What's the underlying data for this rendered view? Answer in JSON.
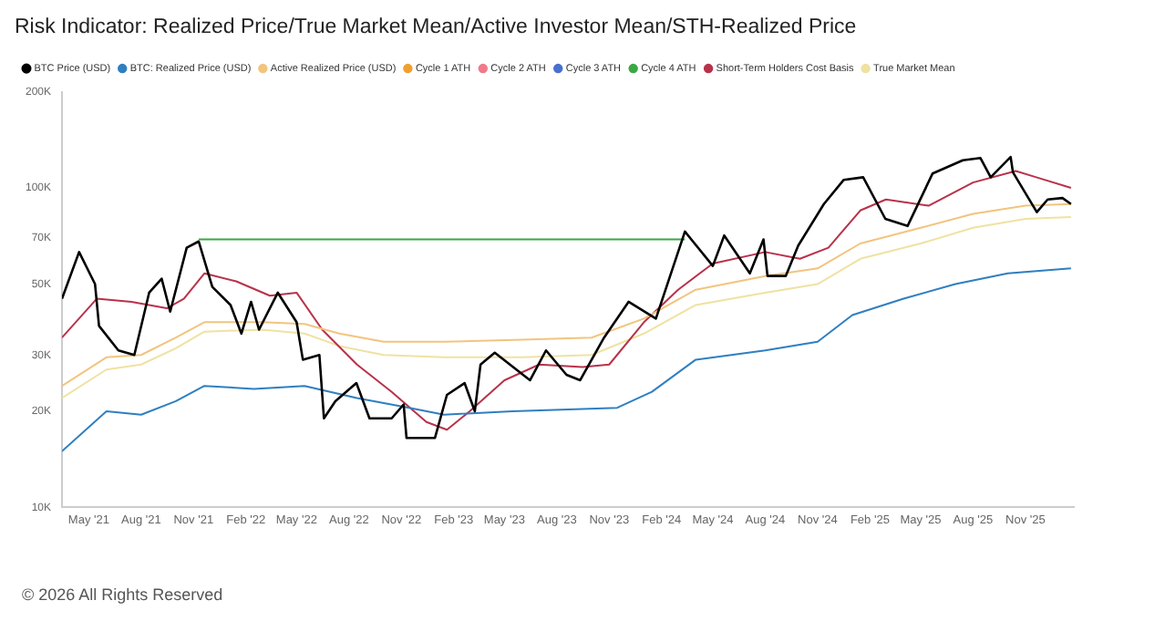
{
  "chart_data": {
    "type": "line",
    "title": "Risk Indicator: Realized Price/True Market Mean/Active Investor Mean/STH-Realized Price",
    "annotations": [
      "© 2026 All Rights Reserved"
    ],
    "log": "y",
    "grid": false,
    "legend": "top left",
    "marker": "none",
    "line_style": "solid",
    "xlim": [
      "2021-03-15",
      "2026-01-25"
    ],
    "xticks": [
      {
        "value": "2021-05-01",
        "label": "May '21"
      },
      {
        "value": "2021-08-01",
        "label": "Aug '21"
      },
      {
        "value": "2021-11-01",
        "label": "Nov '21"
      },
      {
        "value": "2022-02-01",
        "label": "Feb '22"
      },
      {
        "value": "2022-05-01",
        "label": "May '22"
      },
      {
        "value": "2022-08-01",
        "label": "Aug '22"
      },
      {
        "value": "2022-11-01",
        "label": "Nov '22"
      },
      {
        "value": "2023-02-01",
        "label": "Feb '23"
      },
      {
        "value": "2023-05-01",
        "label": "May '23"
      },
      {
        "value": "2023-08-01",
        "label": "Aug '23"
      },
      {
        "value": "2023-11-01",
        "label": "Nov '23"
      },
      {
        "value": "2024-02-01",
        "label": "Feb '24"
      },
      {
        "value": "2024-05-01",
        "label": "May '24"
      },
      {
        "value": "2024-08-01",
        "label": "Aug '24"
      },
      {
        "value": "2024-11-01",
        "label": "Nov '24"
      },
      {
        "value": "2025-02-01",
        "label": "Feb '25"
      },
      {
        "value": "2025-05-01",
        "label": "May '25"
      },
      {
        "value": "2025-08-01",
        "label": "Aug '25"
      },
      {
        "value": "2025-11-01",
        "label": "Nov '25"
      }
    ],
    "ylim": [
      10000,
      200000
    ],
    "yticks": [
      {
        "value": 10000,
        "label": "10K"
      },
      {
        "value": 20000,
        "label": "20K"
      },
      {
        "value": 30000,
        "label": "30K"
      },
      {
        "value": 50000,
        "label": "50K"
      },
      {
        "value": 70000,
        "label": "70K"
      },
      {
        "value": 100000,
        "label": "100K"
      },
      {
        "value": 200000,
        "label": "200K"
      }
    ],
    "series": [
      {
        "name": "BTC Price (USD)",
        "type": "line",
        "color": "#000000",
        "x": [
          "2021-03-15",
          "2021-04-14",
          "2021-05-12",
          "2021-05-19",
          "2021-06-22",
          "2021-07-20",
          "2021-08-15",
          "2021-09-06",
          "2021-09-21",
          "2021-10-20",
          "2021-11-10",
          "2021-12-04",
          "2022-01-05",
          "2022-01-24",
          "2022-02-10",
          "2022-02-24",
          "2022-03-29",
          "2022-05-01",
          "2022-05-12",
          "2022-06-10",
          "2022-06-18",
          "2022-07-08",
          "2022-08-14",
          "2022-09-06",
          "2022-10-15",
          "2022-11-05",
          "2022-11-10",
          "2022-12-30",
          "2023-01-20",
          "2023-02-20",
          "2023-03-10",
          "2023-03-20",
          "2023-04-14",
          "2023-06-15",
          "2023-07-13",
          "2023-08-18",
          "2023-09-11",
          "2023-10-23",
          "2023-12-05",
          "2024-01-22",
          "2024-03-13",
          "2024-05-01",
          "2024-05-21",
          "2024-07-05",
          "2024-07-29",
          "2024-08-05",
          "2024-09-06",
          "2024-09-28",
          "2024-11-12",
          "2024-12-17",
          "2025-01-20",
          "2025-02-28",
          "2025-04-08",
          "2025-05-22",
          "2025-07-14",
          "2025-08-14",
          "2025-09-01",
          "2025-10-06",
          "2025-10-10",
          "2025-11-21",
          "2025-12-10",
          "2026-01-05",
          "2026-01-20"
        ],
        "values": [
          45000,
          63000,
          50000,
          37000,
          31000,
          30000,
          47000,
          52000,
          41000,
          65000,
          68000,
          49000,
          43000,
          35000,
          44000,
          36000,
          47000,
          38000,
          29000,
          30000,
          19000,
          21500,
          24500,
          19000,
          19000,
          21000,
          16500,
          16500,
          22500,
          24500,
          20000,
          28000,
          30500,
          25000,
          31000,
          26000,
          25000,
          34000,
          44000,
          39000,
          73000,
          57000,
          71000,
          54000,
          69000,
          53000,
          53000,
          66000,
          89000,
          106000,
          108000,
          80000,
          76000,
          111000,
          122000,
          124000,
          108000,
          125000,
          112000,
          84000,
          92000,
          93000,
          89000
        ]
      },
      {
        "name": "BTC: Realized Price (USD)",
        "type": "line",
        "color": "#2f7fc1",
        "x": [
          "2021-03-15",
          "2021-06-01",
          "2021-08-01",
          "2021-10-01",
          "2021-11-20",
          "2022-02-15",
          "2022-05-15",
          "2022-08-15",
          "2022-11-15",
          "2023-01-15",
          "2023-05-15",
          "2023-11-15",
          "2024-01-15",
          "2024-04-01",
          "2024-08-01",
          "2024-11-01",
          "2025-01-01",
          "2025-04-01",
          "2025-07-01",
          "2025-10-01",
          "2026-01-20"
        ],
        "values": [
          15000,
          20000,
          19500,
          21500,
          24000,
          23500,
          24000,
          22000,
          20500,
          19500,
          20000,
          20500,
          23000,
          29000,
          31000,
          33000,
          40000,
          45000,
          50000,
          54000,
          56000
        ]
      },
      {
        "name": "Active Realized Price (USD)",
        "type": "line",
        "color": "#f2c47e",
        "x": [
          "2021-03-15",
          "2021-06-01",
          "2021-08-01",
          "2021-10-01",
          "2021-11-20",
          "2022-03-01",
          "2022-05-15",
          "2022-07-15",
          "2022-10-01",
          "2023-01-15",
          "2023-06-01",
          "2023-10-01",
          "2024-01-01",
          "2024-04-01",
          "2024-08-01",
          "2024-11-01",
          "2025-01-15",
          "2025-05-01",
          "2025-08-01",
          "2025-11-01",
          "2026-01-20"
        ],
        "values": [
          24000,
          29500,
          30000,
          34000,
          38000,
          38000,
          37500,
          35000,
          33000,
          33000,
          33500,
          34000,
          39000,
          48000,
          53000,
          56000,
          67000,
          75000,
          83000,
          88000,
          89000
        ]
      },
      {
        "name": "Cycle 1 ATH",
        "color": "#f0a030"
      },
      {
        "name": "Cycle 2 ATH",
        "color": "#f07a8a"
      },
      {
        "name": "Cycle 3 ATH",
        "color": "#4a6fd0"
      },
      {
        "name": "Cycle 4 ATH",
        "type": "line",
        "color": "#3aa845",
        "x": [
          "2021-11-10",
          "2024-03-13"
        ],
        "values": [
          69000,
          69000
        ]
      },
      {
        "name": "Short-Term Holders Cost Basis",
        "type": "line",
        "color": "#b8324a",
        "x": [
          "2021-03-15",
          "2021-05-15",
          "2021-07-15",
          "2021-09-15",
          "2021-10-15",
          "2021-11-20",
          "2022-01-15",
          "2022-03-15",
          "2022-05-01",
          "2022-06-15",
          "2022-08-15",
          "2022-10-15",
          "2022-12-15",
          "2023-01-20",
          "2023-03-01",
          "2023-05-01",
          "2023-07-01",
          "2023-09-15",
          "2023-11-01",
          "2024-01-01",
          "2024-03-01",
          "2024-05-01",
          "2024-08-01",
          "2024-10-01",
          "2024-11-20",
          "2025-01-15",
          "2025-03-01",
          "2025-05-15",
          "2025-08-01",
          "2025-10-15",
          "2025-11-20",
          "2026-01-20"
        ],
        "values": [
          34000,
          45000,
          44000,
          42000,
          45000,
          54000,
          51000,
          46000,
          47000,
          36000,
          28000,
          23000,
          18500,
          17500,
          20000,
          25000,
          28000,
          27500,
          28000,
          38000,
          48000,
          58000,
          63000,
          60000,
          65000,
          85000,
          92000,
          88000,
          104000,
          113000,
          108000,
          100000
        ]
      },
      {
        "name": "True Market Mean",
        "type": "line",
        "color": "#efe2a2",
        "x": [
          "2021-03-15",
          "2021-06-01",
          "2021-08-01",
          "2021-10-01",
          "2021-11-20",
          "2022-03-01",
          "2022-05-15",
          "2022-07-15",
          "2022-10-01",
          "2023-01-15",
          "2023-06-01",
          "2023-10-01",
          "2024-01-01",
          "2024-04-01",
          "2024-08-01",
          "2024-11-01",
          "2025-01-15",
          "2025-05-01",
          "2025-08-01",
          "2025-11-01",
          "2026-01-20"
        ],
        "values": [
          22000,
          27000,
          28000,
          31500,
          35500,
          36000,
          35000,
          32000,
          30000,
          29500,
          29500,
          30000,
          35000,
          43000,
          47000,
          50000,
          60000,
          67000,
          75000,
          80000,
          81000
        ]
      }
    ]
  }
}
